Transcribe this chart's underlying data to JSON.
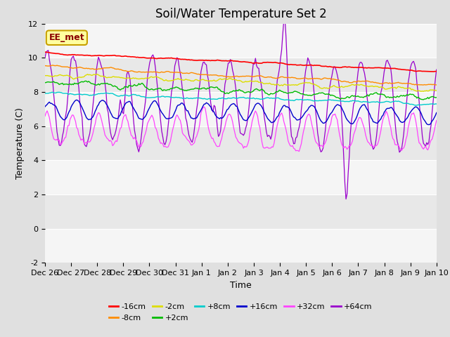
{
  "title": "Soil/Water Temperature Set 2",
  "xlabel": "Time",
  "ylabel": "Temperature (C)",
  "ylim": [
    -2,
    12
  ],
  "yticks": [
    -2,
    0,
    2,
    4,
    6,
    8,
    10,
    12
  ],
  "xlim": [
    0,
    15
  ],
  "xtick_labels": [
    "Dec 26",
    "Dec 27",
    "Dec 28",
    "Dec 29",
    "Dec 30",
    "Dec 31",
    "Jan 1",
    "Jan 2",
    "Jan 3",
    "Jan 4",
    "Jan 5",
    "Jan 6",
    "Jan 7",
    "Jan 8",
    "Jan 9",
    "Jan 10"
  ],
  "annotation_text": "EE_met",
  "annotation_color": "#8B0000",
  "annotation_bg": "#FFFFA0",
  "annotation_border": "#C8A000",
  "series_colors": {
    "-16cm": "#FF0000",
    "-8cm": "#FF8C00",
    "-2cm": "#DDDD00",
    "+2cm": "#00BB00",
    "+8cm": "#00CCCC",
    "+16cm": "#0000CC",
    "+32cm": "#FF44FF",
    "+64cm": "#9900CC"
  },
  "bg_color": "#E0E0E0",
  "plot_bg_light": "#F5F5F5",
  "plot_bg_dark": "#E8E8E8",
  "grid_color": "#FFFFFF",
  "title_fontsize": 12,
  "tick_fontsize": 8,
  "axis_label_fontsize": 9,
  "legend_fontsize": 8
}
